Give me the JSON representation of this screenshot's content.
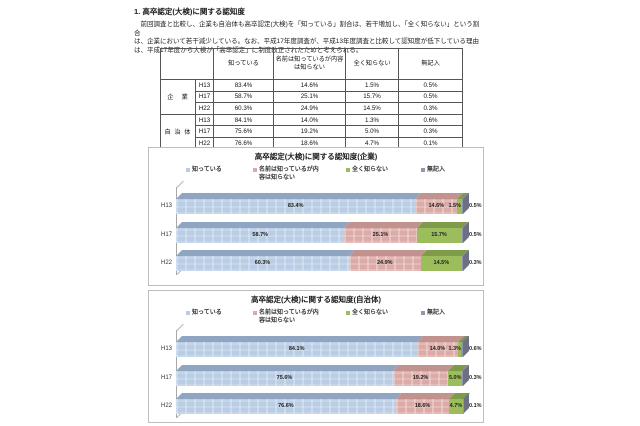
{
  "page": {
    "title": "1. 高卒認定(大検)に関する認知度",
    "paragraph_lines": [
      "　前回調査と比較し、企業も自治体も高卒認定(大検)を「知っている」割合は、若干増加し、「全く知らない」という割合",
      "は、企業において若干減少している。なお、平成17年度調査が、平成13年度調査と比較して認知度が低下している理由",
      "は、平成17年度から大検が「高卒認定」に制度改正されたためと考えられる。"
    ]
  },
  "table": {
    "col_headers": [
      "知っている",
      "名前は知っているが内容は知らない",
      "全く知らない",
      "無記入"
    ],
    "groups": [
      {
        "label": "企　業",
        "rows": [
          [
            "H13",
            "83.4%",
            "14.6%",
            "1.5%",
            "0.5%"
          ],
          [
            "H17",
            "58.7%",
            "25.1%",
            "15.7%",
            "0.5%"
          ],
          [
            "H22",
            "60.3%",
            "24.9%",
            "14.5%",
            "0.3%"
          ]
        ]
      },
      {
        "label": "自 治 体",
        "rows": [
          [
            "H13",
            "84.1%",
            "14.0%",
            "1.3%",
            "0.6%"
          ],
          [
            "H17",
            "75.6%",
            "19.2%",
            "5.0%",
            "0.3%"
          ],
          [
            "H22",
            "76.6%",
            "18.6%",
            "4.7%",
            "0.1%"
          ]
        ]
      }
    ]
  },
  "chart_data": [
    {
      "type": "bar",
      "subtype": "horizontal-stacked-3d",
      "title": "高卒認定(大検)に関する認知度(企業)",
      "categories": [
        "H13",
        "H17",
        "H22"
      ],
      "legend": [
        "知っている",
        "名前は知っているが内容は知らない",
        "全く知らない",
        "無記入"
      ],
      "legend_position": "top",
      "xlim": [
        0,
        100
      ],
      "unit": "%",
      "cap_color": "#6d7083",
      "series": [
        {
          "name": "知っている",
          "color": "#b9cde5",
          "top_color": "#8fa5c2",
          "values": [
            83.4,
            58.7,
            60.3
          ]
        },
        {
          "name": "名前は知っているが内容は知らない",
          "color": "#dcaba7",
          "top_color": "#c2928e",
          "values": [
            14.6,
            25.1,
            24.9
          ]
        },
        {
          "name": "全く知らない",
          "color": "#9cbd5b",
          "top_color": "#7d9b48",
          "values": [
            1.5,
            15.7,
            14.5
          ]
        },
        {
          "name": "無記入",
          "color": "#9297ad",
          "top_color": "#6f7287",
          "values": [
            0.5,
            0.5,
            0.3
          ]
        }
      ]
    },
    {
      "type": "bar",
      "subtype": "horizontal-stacked-3d",
      "title": "高卒認定(大検)に関する認知度(自治体)",
      "categories": [
        "H13",
        "H17",
        "H22"
      ],
      "legend": [
        "知っている",
        "名前は知っているが内容は知らない",
        "全く知らない",
        "無記入"
      ],
      "legend_position": "top",
      "xlim": [
        0,
        100
      ],
      "unit": "%",
      "cap_color": "#6d7083",
      "series": [
        {
          "name": "知っている",
          "color": "#b9cde5",
          "top_color": "#8fa5c2",
          "values": [
            84.1,
            75.6,
            76.6
          ]
        },
        {
          "name": "名前は知っているが内容は知らない",
          "color": "#dcaba7",
          "top_color": "#c2928e",
          "values": [
            14.0,
            19.2,
            18.6
          ]
        },
        {
          "name": "全く知らない",
          "color": "#9cbd5b",
          "top_color": "#7d9b48",
          "values": [
            1.3,
            5.0,
            4.7
          ]
        },
        {
          "name": "無記入",
          "color": "#9297ad",
          "top_color": "#6f7287",
          "values": [
            0.6,
            0.3,
            0.1
          ]
        }
      ]
    }
  ]
}
